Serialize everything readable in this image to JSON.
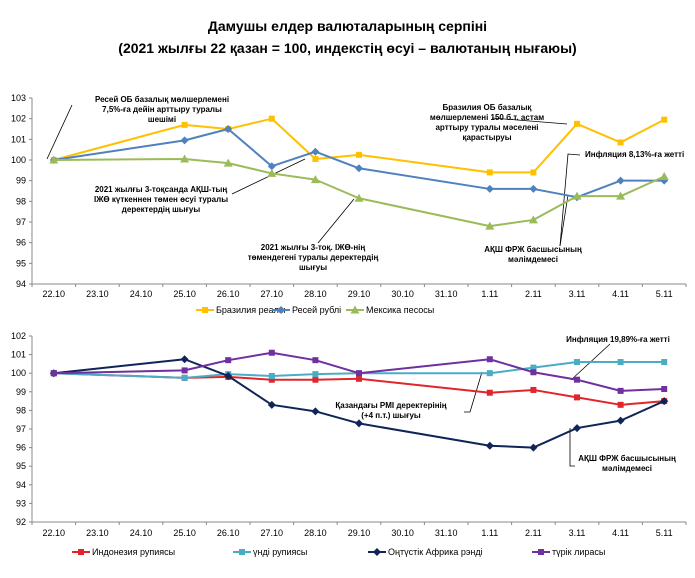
{
  "title": {
    "line1": "Дамушы елдер валюталарының серпіні",
    "line2": "(2021 жылғы 22 қазан = 100, индекстің өсуі – валютаның нығаюы)"
  },
  "chart_data": [
    {
      "type": "line",
      "title": "",
      "categories": [
        "22.10",
        "23.10",
        "24.10",
        "25.10",
        "26.10",
        "27.10",
        "28.10",
        "29.10",
        "30.10",
        "31.10",
        "1.11",
        "2.11",
        "3.11",
        "4.11",
        "5.11"
      ],
      "yticks": [
        94,
        95,
        96,
        97,
        98,
        99,
        100,
        101,
        102,
        103
      ],
      "ylim": [
        94,
        103
      ],
      "grid": false,
      "legend": "bottom",
      "series": [
        {
          "name": "Бразилия реалы",
          "color": "#FFC000",
          "marker": "square",
          "values": [
            100,
            null,
            null,
            101.7,
            101.5,
            102.0,
            100.05,
            100.25,
            null,
            null,
            99.4,
            99.4,
            101.75,
            100.85,
            101.95
          ]
        },
        {
          "name": "Ресей рублі",
          "color": "#4F81BD",
          "marker": "diamond",
          "values": [
            100,
            null,
            null,
            100.95,
            101.5,
            99.7,
            100.4,
            99.6,
            null,
            null,
            98.6,
            98.6,
            98.2,
            99.0,
            99.0
          ]
        },
        {
          "name": "Мексика песосы",
          "color": "#9BBB59",
          "marker": "triangle",
          "values": [
            100,
            null,
            null,
            100.05,
            99.85,
            99.35,
            99.05,
            98.15,
            null,
            null,
            96.8,
            97.1,
            98.25,
            98.25,
            99.2
          ]
        }
      ],
      "annotations": [
        {
          "lines": [
            "Ресей ОБ базалық мөлшерлемені",
            "7,5%-ға дейін арттыру туралы",
            "шешімі"
          ],
          "target": "22.10"
        },
        {
          "lines": [
            "2021 жылғы 3-тоқсанда АҚШ-тың",
            "ІЖӨ күткеннен төмен өсуі туралы",
            "деректердің шығуы"
          ],
          "target": "28.10"
        },
        {
          "lines": [
            "2021 жылғы 3-тоқ. ІЖӨ-нің",
            "төмендегені туралы деректердің",
            "шығуы"
          ],
          "target": "29.10"
        },
        {
          "lines": [
            "Бразилия ОБ базалық",
            "мөлшерлемені 150 б.т. астам",
            "арттыру туралы мәселені",
            "қарастыруы"
          ],
          "target": "3.11"
        },
        {
          "lines": [
            "Инфляция 8,13%-ға жетті"
          ],
          "target": "3.11"
        },
        {
          "lines": [
            "АҚШ ФРЖ басшысының",
            "мәлімдемесі"
          ],
          "target": "3.11"
        }
      ]
    },
    {
      "type": "line",
      "title": "",
      "categories": [
        "22.10",
        "23.10",
        "24.10",
        "25.10",
        "26.10",
        "27.10",
        "28.10",
        "29.10",
        "30.10",
        "31.10",
        "1.11",
        "2.11",
        "3.11",
        "4.11",
        "5.11"
      ],
      "yticks": [
        92,
        93,
        94,
        95,
        96,
        97,
        98,
        99,
        100,
        101,
        102
      ],
      "ylim": [
        92,
        102
      ],
      "grid": false,
      "legend": "bottom",
      "series": [
        {
          "name": "Индонезия рупиясы",
          "color": "#E0262B",
          "marker": "square",
          "values": [
            100,
            null,
            null,
            99.75,
            99.8,
            99.65,
            99.65,
            99.7,
            null,
            null,
            98.95,
            99.1,
            98.7,
            98.3,
            98.5
          ]
        },
        {
          "name": "үнді рупиясы",
          "color": "#4BACC6",
          "marker": "square",
          "values": [
            100,
            null,
            null,
            99.75,
            99.95,
            99.85,
            99.95,
            100.0,
            null,
            null,
            100.0,
            100.3,
            100.6,
            100.6,
            100.6
          ]
        },
        {
          "name": "Оңтүстік Африка рэнді",
          "color": "#0F2557",
          "marker": "diamond",
          "values": [
            100,
            null,
            null,
            100.75,
            99.85,
            98.3,
            97.95,
            97.3,
            null,
            null,
            96.1,
            96.0,
            97.05,
            97.45,
            98.5
          ]
        },
        {
          "name": "түрік лирасы",
          "color": "#7030A0",
          "marker": "square",
          "values": [
            100,
            null,
            null,
            100.15,
            100.7,
            101.1,
            100.7,
            100.0,
            null,
            null,
            100.75,
            100.05,
            99.65,
            99.05,
            99.15
          ]
        }
      ],
      "annotations": [
        {
          "lines": [
            "Инфляция 19,89%-ға жетті"
          ],
          "target": "3.11"
        },
        {
          "lines": [
            "Қазандағы PMI деректерінің",
            "(+4 п.т.) шығуы"
          ],
          "target": "1.11"
        },
        {
          "lines": [
            "АҚШ ФРЖ басшысының",
            "мәлімдемесі"
          ],
          "target": "3.11"
        }
      ]
    }
  ]
}
